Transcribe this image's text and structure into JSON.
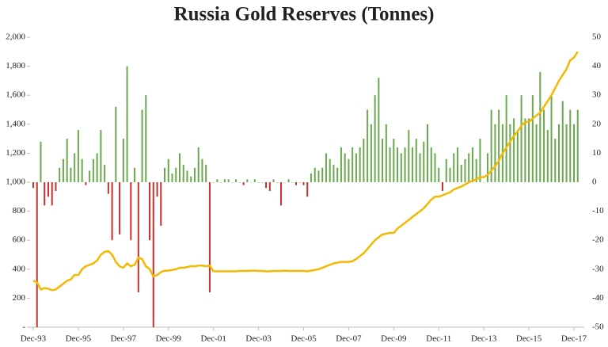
{
  "chart_data": {
    "type": "bar",
    "title": "Russia Gold Reserves (Tonnes)",
    "categories": [
      "Dec-93",
      null,
      null,
      null,
      null,
      null,
      null,
      null,
      null,
      null,
      null,
      null,
      "Dec-95",
      null,
      null,
      null,
      null,
      null,
      null,
      null,
      null,
      null,
      null,
      null,
      "Dec-97",
      null,
      null,
      null,
      null,
      null,
      null,
      null,
      null,
      null,
      null,
      null,
      "Dec-99",
      null,
      null,
      null,
      null,
      null,
      null,
      null,
      null,
      null,
      null,
      null,
      "Dec-01",
      null,
      null,
      null,
      null,
      null,
      null,
      null,
      null,
      null,
      null,
      null,
      "Dec-03",
      null,
      null,
      null,
      null,
      null,
      null,
      null,
      null,
      null,
      null,
      null,
      "Dec-05",
      null,
      null,
      null,
      null,
      null,
      null,
      null,
      null,
      null,
      null,
      null,
      "Dec-07",
      null,
      null,
      null,
      null,
      null,
      null,
      null,
      null,
      null,
      null,
      null,
      "Dec-09",
      null,
      null,
      null,
      null,
      null,
      null,
      null,
      null,
      null,
      null,
      null,
      "Dec-11",
      null,
      null,
      null,
      null,
      null,
      null,
      null,
      null,
      null,
      null,
      null,
      "Dec-13",
      null,
      null,
      null,
      null,
      null,
      null,
      null,
      null,
      null,
      null,
      null,
      "Dec-15",
      null,
      null,
      null,
      null,
      null,
      null,
      null,
      null,
      null,
      null,
      null,
      "Dec-17",
      null
    ],
    "series": [
      {
        "type": "bar",
        "axis": "y2",
        "color": "#6aa84f",
        "negative_color": "#c9302c",
        "values": [
          -2,
          -50,
          14,
          -8,
          -5,
          -8,
          -3,
          5,
          8,
          15,
          5,
          10,
          18,
          8,
          -1,
          4,
          8,
          10,
          18,
          6,
          -4,
          -20,
          26,
          -18,
          15,
          40,
          -20,
          5,
          -38,
          25,
          30,
          -20,
          -50,
          -5,
          -15,
          5,
          8,
          3,
          5,
          10,
          6,
          4,
          2,
          5,
          12,
          8,
          6,
          -38,
          0,
          1,
          0,
          1,
          1,
          0,
          1,
          0,
          -1,
          1,
          0,
          1,
          0,
          0,
          -2,
          -3,
          1,
          0,
          -8,
          0,
          1,
          0,
          -1,
          0,
          -1,
          -5,
          3,
          5,
          4,
          5,
          10,
          8,
          6,
          5,
          12,
          10,
          8,
          12,
          10,
          12,
          15,
          25,
          20,
          30,
          36,
          15,
          20,
          12,
          15,
          12,
          10,
          12,
          18,
          12,
          15,
          10,
          14,
          20,
          12,
          10,
          5,
          -3,
          8,
          5,
          10,
          12,
          6,
          8,
          10,
          12,
          8,
          15,
          0,
          10,
          25,
          20,
          25,
          20,
          30,
          20,
          22,
          18,
          30,
          22,
          22,
          30,
          20,
          38,
          25,
          18,
          30,
          15,
          20,
          28,
          20,
          25,
          20,
          25
        ]
      },
      {
        "type": "line",
        "color": "#f5b800",
        "values": [
          320,
          310,
          260,
          270,
          265,
          255,
          260,
          280,
          300,
          320,
          330,
          360,
          360,
          400,
          420,
          430,
          440,
          460,
          500,
          520,
          525,
          500,
          450,
          420,
          410,
          440,
          420,
          430,
          480,
          470,
          420,
          400,
          350,
          360,
          380,
          390,
          390,
          395,
          400,
          410,
          410,
          415,
          420,
          420,
          425,
          425,
          420,
          425,
          385,
          385,
          385,
          385,
          385,
          385,
          385,
          388,
          388,
          388,
          390,
          390,
          388,
          388,
          385,
          385,
          388,
          388,
          388,
          390,
          388,
          388,
          388,
          388,
          388,
          385,
          390,
          395,
          400,
          410,
          420,
          430,
          440,
          445,
          450,
          450,
          450,
          455,
          470,
          490,
          510,
          540,
          570,
          600,
          620,
          640,
          645,
          650,
          650,
          680,
          700,
          720,
          740,
          760,
          780,
          800,
          820,
          850,
          880,
          900,
          900,
          910,
          920,
          930,
          950,
          960,
          970,
          985,
          1000,
          1010,
          1020,
          1035,
          1035,
          1050,
          1080,
          1110,
          1150,
          1200,
          1240,
          1280,
          1320,
          1350,
          1390,
          1415,
          1415,
          1440,
          1460,
          1480,
          1520,
          1560,
          1600,
          1650,
          1700,
          1740,
          1780,
          1840,
          1860,
          1900
        ]
      }
    ],
    "ylim": [
      0,
      2000
    ],
    "yticks": [
      {
        "value": 0,
        "label": "-"
      },
      200,
      400,
      600,
      800,
      {
        "value": 1000,
        "label": "1,000"
      },
      {
        "value": 1200,
        "label": "1,200"
      },
      {
        "value": 1400,
        "label": "1,400"
      },
      {
        "value": 1600,
        "label": "1,600"
      },
      {
        "value": 1800,
        "label": "1,800"
      },
      {
        "value": 2000,
        "label": "2,000"
      }
    ],
    "y2lim": [
      -50,
      50
    ],
    "y2ticks": [
      -50,
      -40,
      -30,
      -20,
      -10,
      0,
      10,
      20,
      30,
      40,
      50
    ],
    "grid": false
  }
}
